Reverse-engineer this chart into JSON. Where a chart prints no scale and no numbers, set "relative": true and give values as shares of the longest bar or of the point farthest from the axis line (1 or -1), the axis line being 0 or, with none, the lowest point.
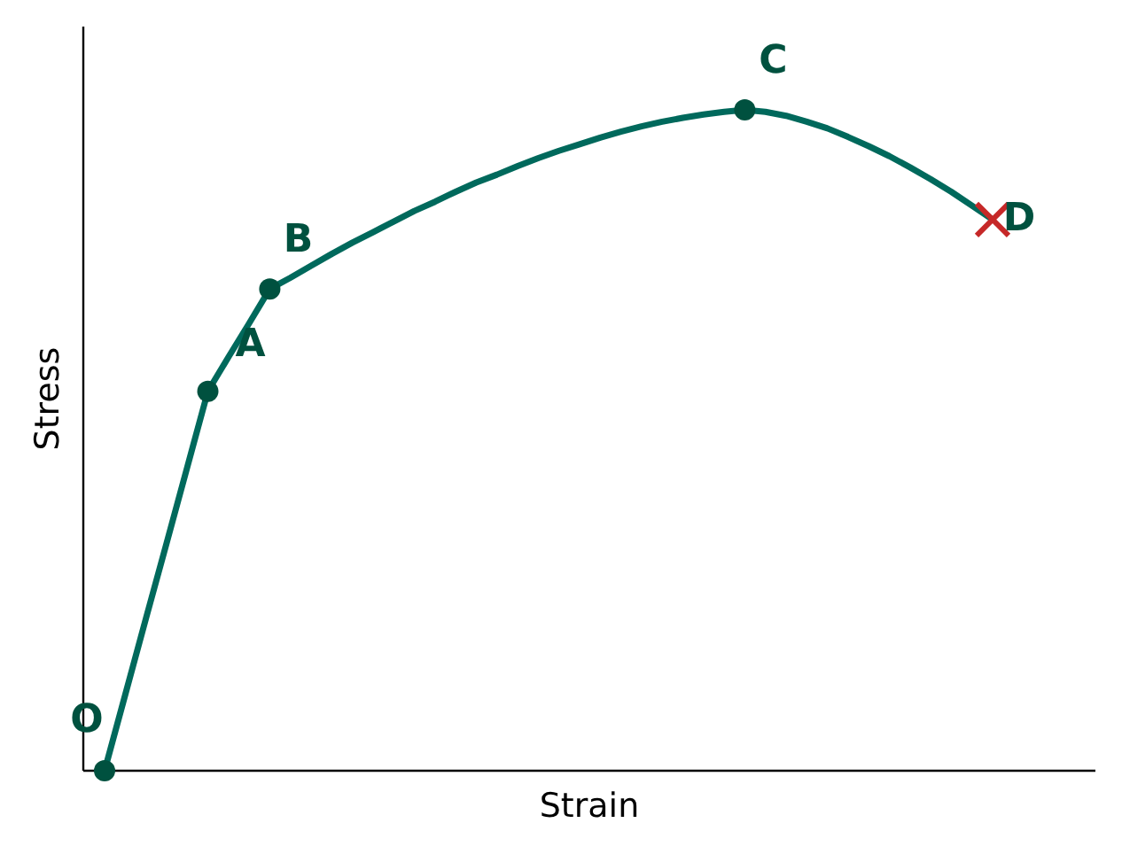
{
  "chart_data": {
    "type": "line",
    "relative": true,
    "xlabel": "Strain",
    "ylabel": "Stress",
    "categories": [
      null,
      null,
      null,
      null,
      null,
      null,
      null,
      null,
      null,
      null,
      null,
      null,
      null,
      null,
      null,
      null,
      null,
      null,
      null,
      null,
      null,
      null,
      null,
      null,
      null,
      null,
      null,
      null,
      null,
      null,
      null,
      null,
      null,
      null,
      null,
      null,
      null,
      null,
      null,
      null,
      null,
      null,
      null,
      null
    ],
    "series": [
      {
        "color": "#00695c",
        "values": [
          0,
          0.115,
          0.23,
          0.344,
          0.459,
          0.574,
          0.626,
          0.677,
          0.729,
          0.746,
          0.764,
          0.782,
          0.799,
          0.815,
          0.831,
          0.847,
          0.861,
          0.876,
          0.89,
          0.902,
          0.915,
          0.927,
          0.938,
          0.948,
          0.958,
          0.967,
          0.975,
          0.982,
          0.988,
          0.993,
          0.997,
          1,
          0.997,
          0.991,
          0.982,
          0.972,
          0.959,
          0.945,
          0.93,
          0.913,
          0.895,
          0.876,
          0.855,
          0.834
        ]
      }
    ],
    "annotations": [
      "O",
      "A",
      "B",
      "C",
      "D"
    ]
  }
}
